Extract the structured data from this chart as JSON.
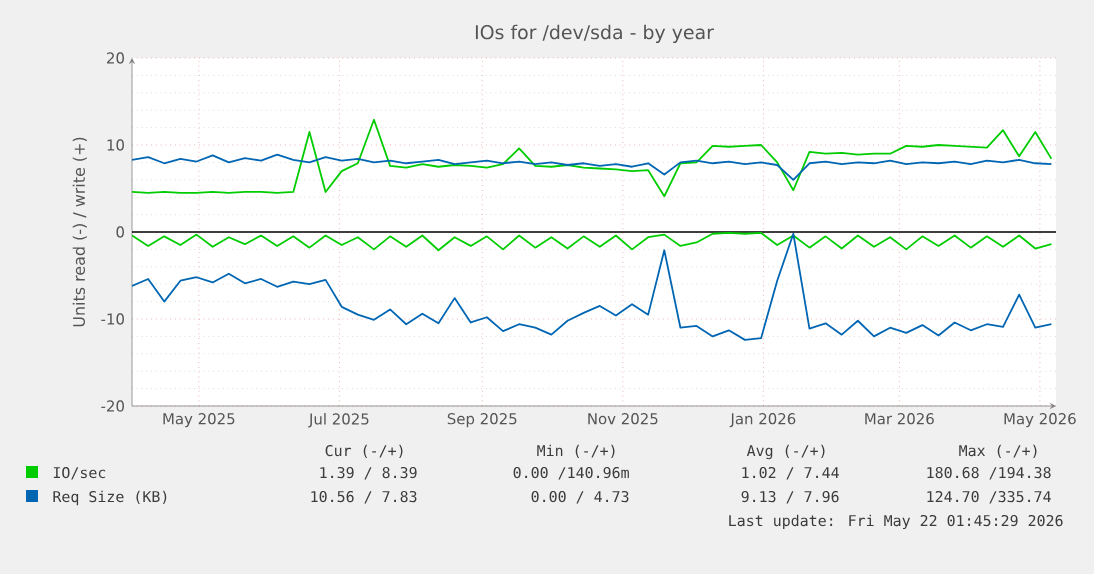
{
  "chart_data": {
    "type": "line",
    "title": "IOs for /dev/sda - by year",
    "ylabel": "Units read (-) / write (+)",
    "x": [
      "2025-04-17",
      "2025-04-24",
      "2025-05-01",
      "2025-05-08",
      "2025-05-15",
      "2025-05-22",
      "2025-05-29",
      "2025-06-05",
      "2025-06-12",
      "2025-06-19",
      "2025-06-26",
      "2025-07-03",
      "2025-07-10",
      "2025-07-17",
      "2025-07-24",
      "2025-07-31",
      "2025-08-07",
      "2025-08-14",
      "2025-08-21",
      "2025-08-28",
      "2025-09-04",
      "2025-09-11",
      "2025-09-18",
      "2025-09-25",
      "2025-10-02",
      "2025-10-09",
      "2025-10-16",
      "2025-10-23",
      "2025-10-30",
      "2025-11-06",
      "2025-11-13",
      "2025-11-20",
      "2025-11-27",
      "2025-12-04",
      "2025-12-11",
      "2025-12-18",
      "2025-12-25",
      "2026-01-01",
      "2026-01-08",
      "2026-01-15",
      "2026-01-22",
      "2026-01-29",
      "2026-02-05",
      "2026-02-12",
      "2026-02-19",
      "2026-02-26",
      "2026-03-05",
      "2026-03-12",
      "2026-03-19",
      "2026-03-26",
      "2026-04-02",
      "2026-04-09",
      "2026-04-16",
      "2026-04-23",
      "2026-04-30",
      "2026-05-07",
      "2026-05-14",
      "2026-05-21"
    ],
    "series": [
      {
        "name": "IO/sec",
        "color": "#00cc00",
        "values": [
          -0.4,
          -1.6,
          -0.5,
          -1.5,
          -0.3,
          -1.7,
          -0.6,
          -1.4,
          -0.4,
          -1.6,
          -0.5,
          -1.8,
          -0.4,
          -1.5,
          -0.6,
          -2.0,
          -0.5,
          -1.7,
          -0.4,
          -2.1,
          -0.6,
          -1.6,
          -0.5,
          -2.0,
          -0.4,
          -1.8,
          -0.6,
          -1.9,
          -0.5,
          -1.7,
          -0.4,
          -2.0,
          -0.6,
          -0.3,
          -1.6,
          -1.2,
          -0.2,
          -0.1,
          -0.2,
          -0.1,
          -1.5,
          -0.4,
          -1.8,
          -0.5,
          -1.9,
          -0.4,
          -1.7,
          -0.6,
          -2.0,
          -0.5,
          -1.6,
          -0.4,
          -1.8,
          -0.5,
          -1.7,
          -0.4,
          -1.9,
          -1.4
        ]
      },
      {
        "color": "#00cc00",
        "values": [
          4.6,
          4.5,
          4.6,
          4.5,
          4.5,
          4.6,
          4.5,
          4.6,
          4.6,
          4.5,
          4.6,
          11.5,
          4.6,
          7.0,
          7.9,
          12.9,
          7.6,
          7.4,
          7.8,
          7.5,
          7.7,
          7.6,
          7.4,
          7.8,
          9.6,
          7.6,
          7.5,
          7.7,
          7.4,
          7.3,
          7.2,
          7.0,
          7.1,
          4.1,
          7.9,
          8.0,
          9.9,
          9.8,
          9.9,
          10.0,
          8.0,
          4.8,
          9.2,
          9.0,
          9.1,
          8.9,
          9.0,
          9.0,
          9.9,
          9.8,
          10.0,
          9.9,
          9.8,
          9.7,
          11.7,
          8.7,
          11.5,
          8.4
        ]
      },
      {
        "name": "Req Size (KB)",
        "color": "#0066b3",
        "values": [
          -6.2,
          -5.4,
          -8.0,
          -5.6,
          -5.2,
          -5.8,
          -4.8,
          -5.9,
          -5.4,
          -6.3,
          -5.7,
          -6.0,
          -5.5,
          -8.6,
          -9.5,
          -10.1,
          -8.9,
          -10.6,
          -9.4,
          -10.5,
          -7.6,
          -10.4,
          -9.8,
          -11.4,
          -10.6,
          -11.0,
          -11.8,
          -10.2,
          -9.3,
          -8.5,
          -9.6,
          -8.3,
          -9.5,
          -2.1,
          -11.0,
          -10.8,
          -12.0,
          -11.3,
          -12.4,
          -12.2,
          -5.6,
          -0.2,
          -11.1,
          -10.5,
          -11.8,
          -10.2,
          -12.0,
          -11.0,
          -11.6,
          -10.7,
          -11.9,
          -10.4,
          -11.3,
          -10.6,
          -10.9,
          -7.2,
          -11.0,
          -10.6
        ]
      },
      {
        "color": "#0066b3",
        "values": [
          8.3,
          8.6,
          7.9,
          8.4,
          8.1,
          8.8,
          8.0,
          8.5,
          8.2,
          8.9,
          8.3,
          8.0,
          8.6,
          8.2,
          8.4,
          8.0,
          8.2,
          7.9,
          8.1,
          8.3,
          7.8,
          8.0,
          8.2,
          7.9,
          8.1,
          7.8,
          8.0,
          7.7,
          7.9,
          7.6,
          7.8,
          7.5,
          7.9,
          6.6,
          8.0,
          8.2,
          7.9,
          8.1,
          7.8,
          8.0,
          7.7,
          6.0,
          7.9,
          8.1,
          7.8,
          8.0,
          7.9,
          8.2,
          7.8,
          8.0,
          7.9,
          8.1,
          7.8,
          8.2,
          8.0,
          8.3,
          7.9,
          7.8
        ]
      }
    ],
    "xlim": [
      "2025-04-17",
      "2026-05-23"
    ],
    "xticks": [
      {
        "value": "2025-05-16",
        "label": "May 2025"
      },
      {
        "value": "2025-07-16",
        "label": "Jul 2025"
      },
      {
        "value": "2025-09-16",
        "label": "Sep 2025"
      },
      {
        "value": "2025-11-16",
        "label": "Nov 2025"
      },
      {
        "value": "2026-01-16",
        "label": "Jan 2026"
      },
      {
        "value": "2026-03-16",
        "label": "Mar 2026"
      },
      {
        "value": "2026-05-16",
        "label": "May 2026"
      }
    ],
    "ylim": [
      -20,
      20
    ],
    "yticks": [
      -20,
      -10,
      0,
      10,
      20
    ],
    "grid": true,
    "legend": "bottom",
    "ref_lines": [
      {
        "axis": "y",
        "value": 0,
        "color": "#000000"
      }
    ],
    "annotations": [
      "Cur (-/+)",
      "Min (-/+)",
      "Avg (-/+)",
      "Max (-/+)",
      "1.39 / 8.39",
      "0.00 /140.96m",
      "1.02 / 7.44",
      "180.68 /194.38",
      "10.56 / 7.83",
      "0.00 / 4.73",
      "9.13 / 7.96",
      "124.70 /335.74",
      "Last update: Fri May 22 01:45:29 2026"
    ]
  }
}
